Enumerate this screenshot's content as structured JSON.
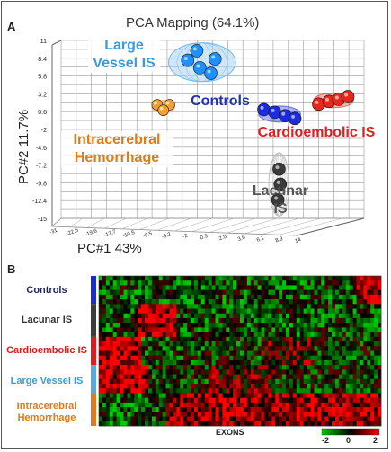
{
  "panel_a": {
    "letter": "A",
    "title": "PCA Mapping (64.1%)",
    "ylabel": "PC#2 11.7%",
    "xlabel": "PC#1 43%",
    "y_ticks": [
      "11",
      "8.4",
      "5.8",
      "3.2",
      "0.6",
      "-2",
      "-4.6",
      "-7.2",
      "-9.8",
      "-12.4",
      "-15"
    ],
    "x_ticks": [
      "-31",
      "-22.5",
      "-19.6",
      "-12.7",
      "-10.5",
      "-6.5",
      "-3.2",
      "-2",
      "0.3",
      "2.5",
      "3.6",
      "6.1",
      "8.9",
      "14"
    ]
  },
  "panel_b": {
    "letter": "B",
    "xlabel": "EXONS",
    "colorbar_ticks": [
      "-2",
      "0",
      "2"
    ]
  },
  "chart_data": [
    {
      "type": "scatter",
      "title": "PCA Mapping (64.1%)",
      "xlabel": "PC#1 43%",
      "ylabel": "PC#2 11.7%",
      "ylim": [
        -15,
        11
      ],
      "grid": true,
      "series": [
        {
          "name": "Large Vessel IS",
          "color": "#1e90ff",
          "ellipse_color": "#a9d3f5",
          "label_color": "#3a9bd6",
          "points": [
            {
              "x": -10.5,
              "y": 9.5
            },
            {
              "x": -12.0,
              "y": 8.1
            },
            {
              "x": -7.5,
              "y": 8.3
            },
            {
              "x": -10.0,
              "y": 7.0
            },
            {
              "x": -8.2,
              "y": 6.2
            }
          ]
        },
        {
          "name": "Controls",
          "color": "#1a2be0",
          "label_color": "#2233aa",
          "points": [
            {
              "x": 0.5,
              "y": 0.9
            },
            {
              "x": 2.3,
              "y": 0.5
            },
            {
              "x": 4.0,
              "y": 0.0
            },
            {
              "x": 5.6,
              "y": -0.4
            }
          ]
        },
        {
          "name": "Cardioembolic IS",
          "color": "#e8261a",
          "label_color": "#e02020",
          "points": [
            {
              "x": 9.5,
              "y": 1.7
            },
            {
              "x": 11.2,
              "y": 2.1
            },
            {
              "x": 12.8,
              "y": 2.4
            },
            {
              "x": 14.3,
              "y": 2.8
            }
          ]
        },
        {
          "name": "Intracerebral Hemorrhage",
          "color": "#f0a030",
          "label_color": "#e07a1a",
          "points": [
            {
              "x": -17.0,
              "y": 1.6
            },
            {
              "x": -15.0,
              "y": 1.6
            },
            {
              "x": -16.0,
              "y": 0.8
            }
          ]
        },
        {
          "name": "Lacunar IS",
          "color": "#3a3a3a",
          "ellipse_color": "#bdbdbd",
          "label_color": "#555555",
          "points": [
            {
              "x": 3.0,
              "y": -7.8
            },
            {
              "x": 3.2,
              "y": -10.0
            },
            {
              "x": 2.8,
              "y": -12.3
            }
          ]
        }
      ]
    },
    {
      "type": "heatmap",
      "xlabel": "EXONS",
      "colormap": {
        "low": "#00cc00",
        "mid": "#000000",
        "high": "#ff0000",
        "range": [
          -2,
          2
        ]
      },
      "row_groups": [
        {
          "name": "Controls",
          "rows": 6,
          "color": "#1a2bd6",
          "label_color": "#23236e"
        },
        {
          "name": "Lacunar IS",
          "rows": 7,
          "color": "#3c3c3c",
          "label_color": "#333333"
        },
        {
          "name": "Cardioembolic IS",
          "rows": 6,
          "color": "#e01b1b",
          "label_color": "#e01b1b"
        },
        {
          "name": "Large Vessel IS",
          "rows": 6,
          "color": "#55a9dd",
          "label_color": "#3b9cd6"
        },
        {
          "name": "Intracerebral Hemorrhage",
          "rows": 7,
          "color": "#e07a1a",
          "label_color": "#e07a1a"
        }
      ],
      "n_exons": 80
    }
  ]
}
